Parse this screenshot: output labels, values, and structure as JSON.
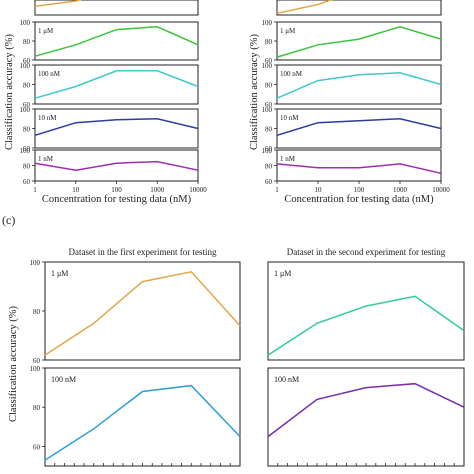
{
  "figure": {
    "panel_label_c": "(c)"
  },
  "chart_data": [
    {
      "type": "line",
      "title": "",
      "xlabel": "Concentration for testing data (nM)",
      "ylabel": "Classification accuracy (%)",
      "x": [
        1,
        10,
        100,
        1000,
        10000
      ],
      "xscale": "log",
      "xlim": [
        1,
        10000
      ],
      "xticklabels": [
        "1",
        "10",
        "100",
        "1000",
        "10000"
      ],
      "panels": [
        {
          "label": "",
          "ylim": [
            60,
            100
          ],
          "yticks": [],
          "x": [
            1,
            10,
            30
          ],
          "values": [
            70,
            76,
            82
          ],
          "color": "#e0a84a"
        },
        {
          "label": "1 μM",
          "ylim": [
            60,
            100
          ],
          "yticks": [
            "100",
            "80",
            "60"
          ],
          "values": [
            64,
            76,
            92,
            95,
            76
          ],
          "color": "#3cc43c"
        },
        {
          "label": "100 nM",
          "ylim": [
            60,
            100
          ],
          "yticks": [
            "100",
            "80",
            "60"
          ],
          "values": [
            66,
            78,
            94,
            94,
            78
          ],
          "color": "#40c8cc"
        },
        {
          "label": "10 nM",
          "ylim": [
            60,
            100
          ],
          "yticks": [
            "100",
            "80",
            "60"
          ],
          "values": [
            73,
            86,
            89,
            90,
            80
          ],
          "color": "#2a3ea0"
        },
        {
          "label": "1 nM",
          "ylim": [
            60,
            100
          ],
          "yticks": [
            "100",
            "80",
            "60"
          ],
          "values": [
            83,
            74,
            83,
            85,
            74
          ],
          "color": "#9b2fb0"
        }
      ]
    },
    {
      "type": "line",
      "title": "",
      "xlabel": "Concentration for testing data (nM)",
      "ylabel": "Classification accuracy (%)",
      "x": [
        1,
        10,
        100,
        1000,
        10000
      ],
      "xscale": "log",
      "xlim": [
        1,
        10000
      ],
      "xticklabels": [
        "1",
        "10",
        "100",
        "1000",
        "10000"
      ],
      "panels": [
        {
          "label": "",
          "ylim": [
            60,
            100
          ],
          "yticks": [],
          "x": [
            1,
            10,
            30
          ],
          "values": [
            62,
            72,
            80
          ],
          "color": "#e0a84a"
        },
        {
          "label": "1 μM",
          "ylim": [
            60,
            100
          ],
          "yticks": [
            "100",
            "80",
            "60"
          ],
          "values": [
            63,
            76,
            82,
            95,
            82
          ],
          "color": "#3cc43c"
        },
        {
          "label": "100 nM",
          "ylim": [
            60,
            100
          ],
          "yticks": [
            "100",
            "80",
            "60"
          ],
          "values": [
            66,
            84,
            90,
            92,
            80
          ],
          "color": "#40c8cc"
        },
        {
          "label": "10 nM",
          "ylim": [
            60,
            100
          ],
          "yticks": [
            "100",
            "80",
            "60"
          ],
          "values": [
            73,
            86,
            88,
            90,
            80
          ],
          "color": "#2a3ea0"
        },
        {
          "label": "1 nM",
          "ylim": [
            60,
            100
          ],
          "yticks": [
            "100",
            "80",
            "60"
          ],
          "values": [
            82,
            77,
            77,
            82,
            70
          ],
          "color": "#9b2fb0"
        }
      ]
    },
    {
      "type": "line",
      "title": "Dataset in the first experiment for testing",
      "ylabel": "Classification accuracy (%)",
      "panels": [
        {
          "label": "1 μM",
          "ylim": [
            60,
            100
          ],
          "yticks": [
            "100",
            "80",
            "60"
          ],
          "values": [
            62,
            75,
            92,
            96,
            74
          ],
          "color": "#e0a84a"
        },
        {
          "label": "100 nM",
          "ylim": [
            50,
            100
          ],
          "yticks": [
            "100",
            "80",
            "60"
          ],
          "values": [
            53,
            69,
            88,
            91,
            65
          ],
          "color": "#2aa0d8"
        }
      ]
    },
    {
      "type": "line",
      "title": "Dataset in the second experiment for testing",
      "panels": [
        {
          "label": "1 μM",
          "ylim": [
            60,
            100
          ],
          "yticks": [],
          "values": [
            62,
            75,
            82,
            86,
            72
          ],
          "color": "#2ecc9a"
        },
        {
          "label": "100 nM",
          "ylim": [
            50,
            100
          ],
          "yticks": [],
          "values": [
            65,
            84,
            90,
            92,
            80
          ],
          "color": "#7a2cb0"
        }
      ]
    }
  ]
}
